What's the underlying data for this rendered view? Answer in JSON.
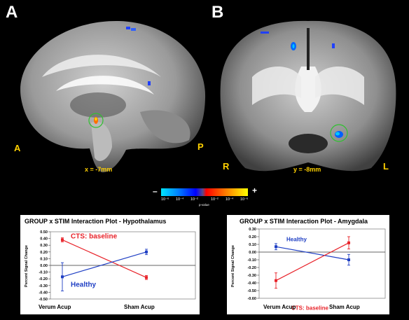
{
  "panels": {
    "a": {
      "letter": "A",
      "left_label": "A",
      "right_label": "P",
      "coord": "x = -7mm"
    },
    "b": {
      "letter": "B",
      "left_label": "R",
      "right_label": "L",
      "coord": "y = -8mm"
    }
  },
  "colorbar": {
    "minus": "–",
    "plus": "+",
    "ticks": [
      "10⁻⁶",
      "10⁻⁴",
      "10⁻²",
      "10⁻²",
      "10⁻⁴",
      "10⁻⁶"
    ],
    "caption": "p-value",
    "colors": [
      "#00e5ff",
      "#0080ff",
      "#0000ff",
      "#5a4a8a",
      "#ff0000",
      "#ff8000",
      "#ffff00"
    ]
  },
  "chart_data": [
    {
      "type": "line",
      "title": "GROUP x STIM Interaction Plot - Hypothalamus",
      "ylabel": "Percent Signal Change",
      "categories": [
        "Verum Acup",
        "Sham Acup"
      ],
      "yticks": [
        "0.50",
        "0.40",
        "0.30",
        "0.20",
        "0.10",
        "0.00",
        "-0.10",
        "-0.20",
        "-0.30",
        "-0.40",
        "-0.50"
      ],
      "ylim": [
        -0.5,
        0.5
      ],
      "series": [
        {
          "name": "CTS: baseline",
          "color": "#e8232a",
          "values": [
            0.38,
            -0.18
          ],
          "errors": [
            0.03,
            0.03
          ]
        },
        {
          "name": "Healthy",
          "color": "#1f3fc4",
          "values": [
            -0.17,
            0.2
          ],
          "errors": [
            0.21,
            0.04
          ]
        }
      ]
    },
    {
      "type": "line",
      "title": "GROUP x STIM Interaction Plot - Amygdala",
      "ylabel": "Percent Signal Change",
      "categories": [
        "Verum Acup",
        "Sham Acup"
      ],
      "yticks": [
        "0.30",
        "0.20",
        "0.10",
        "0.00",
        "-0.10",
        "-0.20",
        "-0.30",
        "-0.40",
        "-0.50",
        "-0.60"
      ],
      "ylim": [
        -0.6,
        0.3
      ],
      "series": [
        {
          "name": "Healthy",
          "color": "#1f3fc4",
          "values": [
            0.07,
            -0.1
          ],
          "errors": [
            0.04,
            0.07
          ]
        },
        {
          "name": "CTS: baseline",
          "color": "#e8232a",
          "values": [
            -0.37,
            0.12
          ],
          "errors": [
            0.1,
            0.08
          ]
        }
      ]
    }
  ]
}
